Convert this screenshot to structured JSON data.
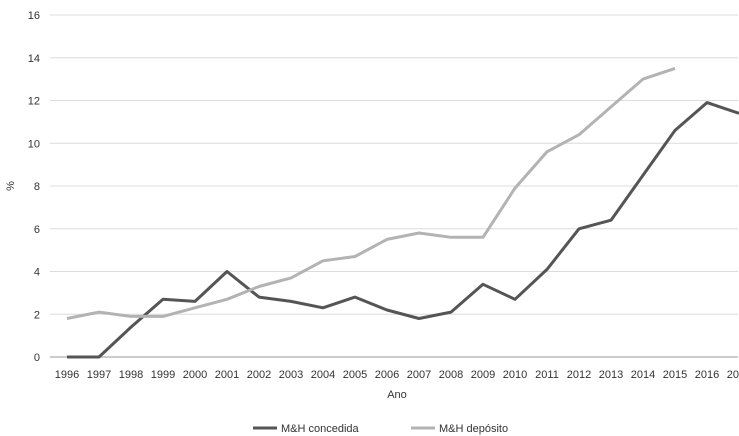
{
  "chart_data": {
    "type": "line",
    "title": "",
    "xlabel": "Ano",
    "ylabel": "%",
    "ylim": [
      0,
      16
    ],
    "yticks": [
      0,
      2,
      4,
      6,
      8,
      10,
      12,
      14,
      16
    ],
    "grid": "horizontal",
    "legend": "bottom-center",
    "categories": [
      "1996",
      "1997",
      "1998",
      "1999",
      "2000",
      "2001",
      "2002",
      "2003",
      "2004",
      "2005",
      "2006",
      "2007",
      "2008",
      "2009",
      "2010",
      "2011",
      "2012",
      "2013",
      "2014",
      "2015",
      "2016",
      "2017"
    ],
    "series": [
      {
        "name": "M&H concedida",
        "color": "#555555",
        "values": [
          0,
          0,
          1.4,
          2.7,
          2.6,
          4.0,
          2.8,
          2.6,
          2.3,
          2.8,
          2.2,
          1.8,
          2.1,
          3.4,
          2.7,
          4.1,
          6.0,
          6.4,
          8.5,
          10.6,
          11.9,
          11.4
        ]
      },
      {
        "name": "M&H depósito",
        "color": "#b3b3b3",
        "values": [
          1.8,
          2.1,
          1.9,
          1.9,
          2.3,
          2.7,
          3.3,
          3.7,
          4.5,
          4.7,
          5.5,
          5.8,
          5.6,
          5.6,
          7.9,
          9.6,
          10.4,
          11.7,
          13.0,
          13.5,
          null,
          null
        ]
      }
    ]
  }
}
